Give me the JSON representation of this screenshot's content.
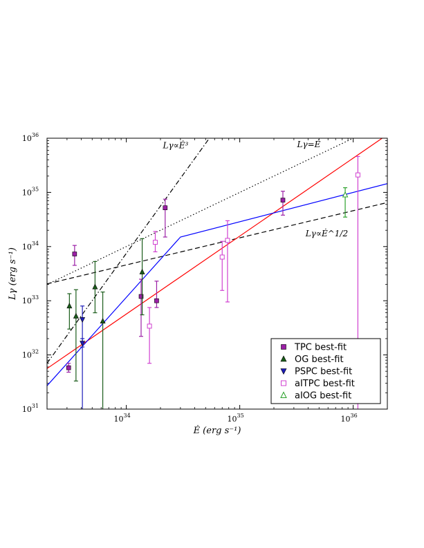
{
  "chart_data": {
    "type": "scatter",
    "xlabel": "Ė (erg s⁻¹)",
    "ylabel": "Lγ (erg s⁻¹)",
    "xscale": "log",
    "yscale": "log",
    "xlim": [
      2e+33,
      2e+36
    ],
    "ylim": [
      1e+31,
      1e+36
    ],
    "x_ticks": [
      {
        "value": 1e+34,
        "label": "10",
        "exp": "34"
      },
      {
        "value": 1e+35,
        "label": "10",
        "exp": "35"
      },
      {
        "value": 1e+36,
        "label": "10",
        "exp": "36"
      }
    ],
    "y_ticks": [
      {
        "value": 1e+31,
        "label": "10",
        "exp": "31"
      },
      {
        "value": 1e+32,
        "label": "10",
        "exp": "32"
      },
      {
        "value": 1e+33,
        "label": "10",
        "exp": "33"
      },
      {
        "value": 1e+34,
        "label": "10",
        "exp": "34"
      },
      {
        "value": 1e+35,
        "label": "10",
        "exp": "35"
      },
      {
        "value": 1e+36,
        "label": "10",
        "exp": "36"
      }
    ],
    "series": [
      {
        "name": "TPC best-fit",
        "marker": "square-filled",
        "color": "#9b1fa6",
        "points": [
          {
            "x": 3.1e+33,
            "y": 5.8e+31,
            "ylo": 4.8e+31,
            "yhi": 7e+31
          },
          {
            "x": 3.5e+33,
            "y": 7.3e+33,
            "ylo": 4.5e+33,
            "yhi": 1.05e+34
          },
          {
            "x": 1.35e+34,
            "y": 1.2e+33,
            "ylo": 2.2e+32,
            "yhi": 2.5e+33
          },
          {
            "x": 1.85e+34,
            "y": 1e+33,
            "ylo": 7.5e+32,
            "yhi": 2.3e+33
          },
          {
            "x": 2.2e+34,
            "y": 5.2e+34,
            "ylo": 1.5e+34,
            "yhi": 7.5e+34
          },
          {
            "x": 2.4e+35,
            "y": 7.2e+34,
            "ylo": 3.8e+34,
            "yhi": 1.05e+35
          }
        ]
      },
      {
        "name": "OG best-fit",
        "marker": "triangle-up-filled",
        "color": "#1a5c1a",
        "points": [
          {
            "x": 3.15e+33,
            "y": 8e+32,
            "ylo": 3e+32,
            "yhi": 1.35e+33
          },
          {
            "x": 3.6e+33,
            "y": 5.2e+32,
            "ylo": 3.3e+31,
            "yhi": 1.6e+33
          },
          {
            "x": 5.3e+33,
            "y": 1.8e+33,
            "ylo": 6e+32,
            "yhi": 5.3e+33
          },
          {
            "x": 6.2e+33,
            "y": 4.2e+32,
            "ylo": 1e+31,
            "yhi": 1.45e+33
          },
          {
            "x": 1.38e+34,
            "y": 3.4e+33,
            "ylo": 5.5e+32,
            "yhi": 1.4e+34
          }
        ]
      },
      {
        "name": "PSPC best-fit",
        "marker": "triangle-down-filled",
        "color": "#1c1cb8",
        "points": [
          {
            "x": 4.1e+33,
            "y": 4.5e+32,
            "ylo": 1e+31,
            "yhi": 8e+32
          },
          {
            "x": 4.1e+33,
            "y": 1.65e+32,
            "ylo": 1.4e+32,
            "yhi": 2e+32
          }
        ]
      },
      {
        "name": "aITPC best-fit",
        "marker": "square-open",
        "color": "#d040d0",
        "points": [
          {
            "x": 1.6e+34,
            "y": 3.4e+32,
            "ylo": 7e+31,
            "yhi": 7.5e+32
          },
          {
            "x": 1.8e+34,
            "y": 1.2e+34,
            "ylo": 8e+33,
            "yhi": 1.9e+34
          },
          {
            "x": 7e+34,
            "y": 6.4e+33,
            "ylo": 1.55e+33,
            "yhi": 1.25e+34
          },
          {
            "x": 7.8e+34,
            "y": 1.3e+34,
            "ylo": 9.5e+32,
            "yhi": 3e+34
          },
          {
            "x": 1.1e+36,
            "y": 2.1e+35,
            "ylo": 1e+31,
            "yhi": 4.6e+35
          }
        ]
      },
      {
        "name": "aIOG best-fit",
        "marker": "triangle-up-open",
        "color": "#2aa02a",
        "points": [
          {
            "x": 8.5e+35,
            "y": 9e+34,
            "ylo": 3.5e+34,
            "yhi": 1.22e+35
          }
        ]
      }
    ],
    "lines": [
      {
        "id": "edot-cubed",
        "style": "dashdot",
        "color": "#000000",
        "points": [
          [
            2e+33,
            7e+31
          ],
          [
            5.4e+34,
            1e+36
          ]
        ],
        "label": "Lγ∝Ė³",
        "label_at": [
          2.1e+34,
          6.5e+35
        ]
      },
      {
        "id": "edot-linear",
        "style": "dotted",
        "color": "#000000",
        "points": [
          [
            2e+33,
            2e+33
          ],
          [
            1e+36,
            1e+36
          ]
        ],
        "label": "Lγ=Ė",
        "label_at": [
          3.2e+35,
          6.8e+35
        ]
      },
      {
        "id": "edot-half",
        "style": "dashed",
        "color": "#000000",
        "points": [
          [
            2e+33,
            2.05e+33
          ],
          [
            2e+36,
            6.5e+34
          ]
        ],
        "label": "Lγ∝Ė^1/2",
        "label_at": [
          3.8e+35,
          1.55e+34
        ]
      },
      {
        "id": "red-fit",
        "style": "solid",
        "color": "#ff0000",
        "points": [
          [
            2e+33,
            5.6e+31
          ],
          [
            1.8e+36,
            1e+36
          ]
        ]
      },
      {
        "id": "blue-fit",
        "style": "solid",
        "color": "#0000ff",
        "points": [
          [
            2e+33,
            2.7e+31
          ],
          [
            3e+34,
            1.5e+34
          ],
          [
            2e+36,
            1.45e+35
          ]
        ]
      }
    ],
    "legend": {
      "position": "bottom-right"
    }
  }
}
